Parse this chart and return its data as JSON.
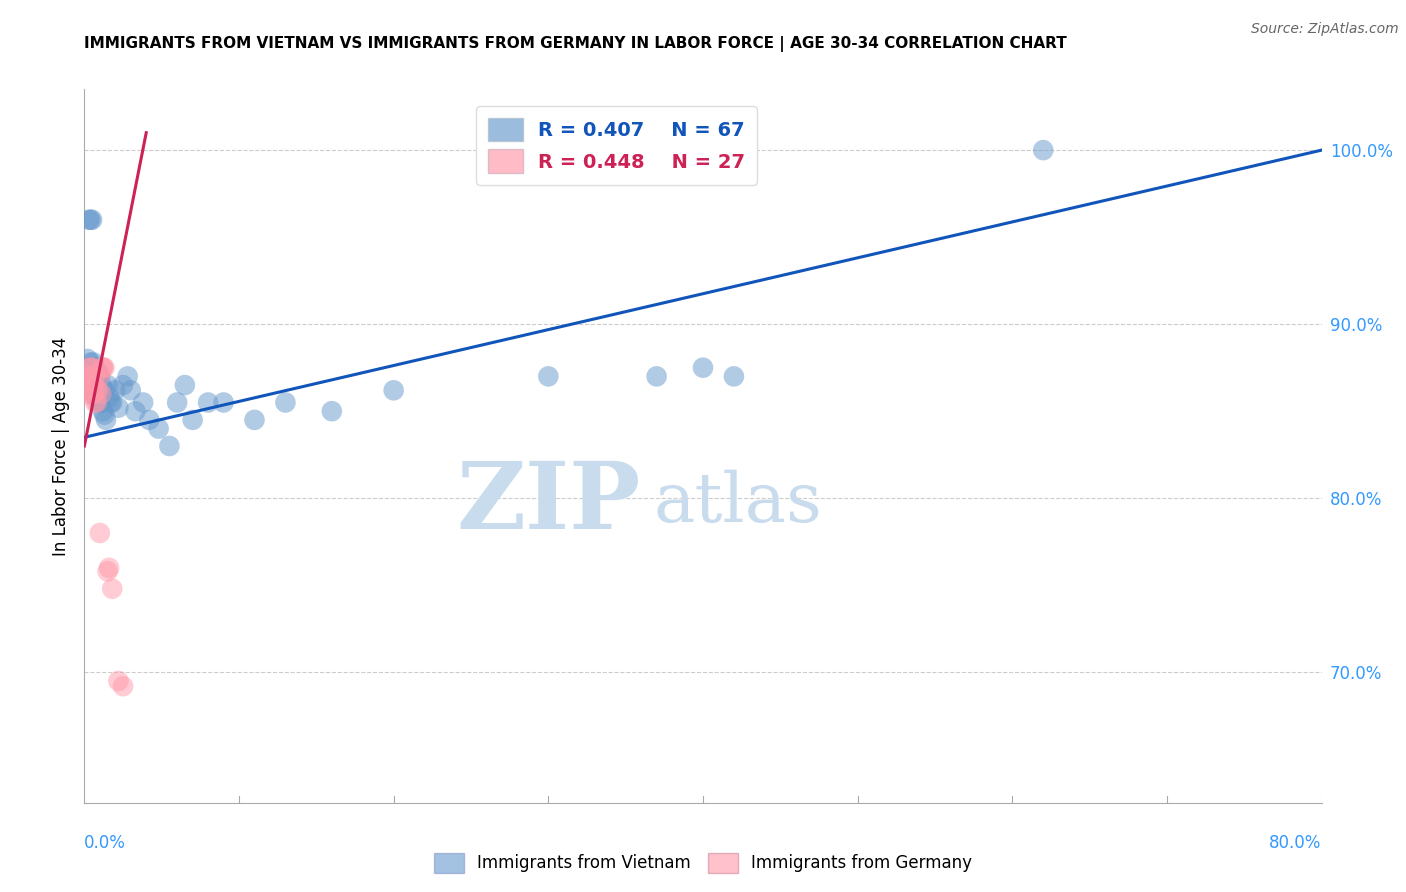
{
  "title": "IMMIGRANTS FROM VIETNAM VS IMMIGRANTS FROM GERMANY IN LABOR FORCE | AGE 30-34 CORRELATION CHART",
  "source": "Source: ZipAtlas.com",
  "ylabel": "In Labor Force | Age 30-34",
  "right_yticks": [
    0.7,
    0.8,
    0.9,
    1.0
  ],
  "right_yticklabels": [
    "70.0%",
    "80.0%",
    "90.0%",
    "100.0%"
  ],
  "xmin": 0.0,
  "xmax": 0.8,
  "ymin": 0.625,
  "ymax": 1.035,
  "watermark_zip": "ZIP",
  "watermark_atlas": "atlas",
  "legend_blue_r": "R = 0.407",
  "legend_blue_n": "N = 67",
  "legend_pink_r": "R = 0.448",
  "legend_pink_n": "N = 27",
  "blue_color": "#6699CC",
  "pink_color": "#FF99AA",
  "blue_line_color": "#1155BB",
  "pink_line_color": "#CC2255",
  "blue_trendline": [
    0.0,
    0.8,
    0.835,
    1.0
  ],
  "pink_trendline": [
    0.0,
    0.04,
    0.83,
    1.01
  ],
  "vietnam_x": [
    0.001,
    0.002,
    0.002,
    0.003,
    0.003,
    0.003,
    0.003,
    0.004,
    0.004,
    0.004,
    0.004,
    0.005,
    0.005,
    0.005,
    0.005,
    0.005,
    0.006,
    0.006,
    0.006,
    0.006,
    0.006,
    0.007,
    0.007,
    0.007,
    0.007,
    0.008,
    0.008,
    0.008,
    0.009,
    0.009,
    0.01,
    0.01,
    0.011,
    0.011,
    0.012,
    0.012,
    0.013,
    0.013,
    0.014,
    0.015,
    0.016,
    0.017,
    0.018,
    0.02,
    0.022,
    0.025,
    0.028,
    0.03,
    0.033,
    0.038,
    0.042,
    0.048,
    0.055,
    0.06,
    0.065,
    0.07,
    0.08,
    0.09,
    0.11,
    0.13,
    0.16,
    0.2,
    0.3,
    0.37,
    0.4,
    0.42,
    0.62
  ],
  "vietnam_y": [
    0.87,
    0.875,
    0.88,
    0.87,
    0.875,
    0.875,
    0.96,
    0.87,
    0.875,
    0.878,
    0.96,
    0.868,
    0.87,
    0.872,
    0.875,
    0.96,
    0.86,
    0.865,
    0.87,
    0.875,
    0.878,
    0.86,
    0.863,
    0.868,
    0.875,
    0.858,
    0.862,
    0.87,
    0.857,
    0.872,
    0.855,
    0.87,
    0.855,
    0.865,
    0.85,
    0.862,
    0.848,
    0.862,
    0.845,
    0.865,
    0.858,
    0.855,
    0.855,
    0.862,
    0.852,
    0.865,
    0.87,
    0.862,
    0.85,
    0.855,
    0.845,
    0.84,
    0.83,
    0.855,
    0.865,
    0.845,
    0.855,
    0.855,
    0.845,
    0.855,
    0.85,
    0.862,
    0.87,
    0.87,
    0.875,
    0.87,
    1.0
  ],
  "germany_x": [
    0.002,
    0.003,
    0.003,
    0.004,
    0.004,
    0.005,
    0.005,
    0.005,
    0.006,
    0.006,
    0.006,
    0.007,
    0.007,
    0.008,
    0.008,
    0.009,
    0.01,
    0.01,
    0.011,
    0.012,
    0.012,
    0.013,
    0.015,
    0.016,
    0.018,
    0.022,
    0.025
  ],
  "germany_y": [
    0.86,
    0.87,
    0.875,
    0.87,
    0.875,
    0.86,
    0.865,
    0.875,
    0.86,
    0.863,
    0.868,
    0.855,
    0.87,
    0.855,
    0.862,
    0.862,
    0.78,
    0.87,
    0.86,
    0.875,
    0.875,
    0.875,
    0.758,
    0.76,
    0.748,
    0.695,
    0.692
  ]
}
